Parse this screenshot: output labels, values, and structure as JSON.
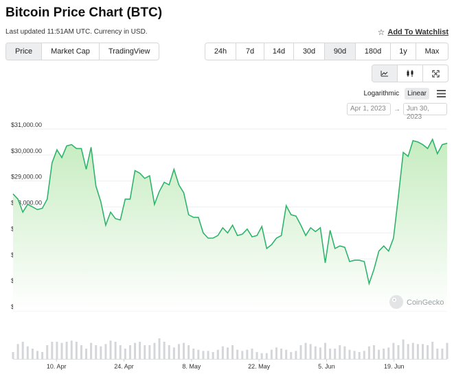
{
  "header": {
    "title": "Bitcoin Price Chart (BTC)",
    "subtitle": "Last updated 11:51AM UTC. Currency in USD.",
    "watchlist_label": "Add To Watchlist"
  },
  "tabs": [
    {
      "label": "Price",
      "active": true
    },
    {
      "label": "Market Cap",
      "active": false
    },
    {
      "label": "TradingView",
      "active": false
    }
  ],
  "ranges": [
    {
      "label": "24h",
      "active": false
    },
    {
      "label": "7d",
      "active": false
    },
    {
      "label": "14d",
      "active": false
    },
    {
      "label": "30d",
      "active": false
    },
    {
      "label": "90d",
      "active": true
    },
    {
      "label": "180d",
      "active": false
    },
    {
      "label": "1y",
      "active": false
    },
    {
      "label": "Max",
      "active": false
    }
  ],
  "chart_types": [
    {
      "icon": "line-chart-icon",
      "active": true
    },
    {
      "icon": "candlestick-icon",
      "active": false
    },
    {
      "icon": "fullscreen-icon",
      "active": false
    }
  ],
  "scale": {
    "log_label": "Logarithmic",
    "linear_label": "Linear",
    "active": "linear"
  },
  "date_range": {
    "from": "Apr 1, 2023",
    "arrow": "→",
    "to": "Jun 30, 2023"
  },
  "watermark": "CoinGecko",
  "colors": {
    "line": "#2fb36d",
    "fill_top": "#c6ecc0",
    "fill_bottom": "#ffffff",
    "volume": "#d4d6da",
    "grid": "#eeeeee"
  },
  "chart_data": {
    "type": "area",
    "title": "Bitcoin Price Chart (BTC)",
    "xlabel": "",
    "ylabel": "",
    "x_start": "2023-04-01",
    "x_end": "2023-06-30",
    "ylim": [
      24000,
      31000
    ],
    "yticks": [
      31000,
      30000,
      29000,
      28000,
      27000,
      26000,
      25000,
      24000
    ],
    "ytick_labels": [
      "$31,000.00",
      "$30,000.00",
      "$29,000.00",
      "$28,000.00",
      "$27,000.00",
      "$26,000.00",
      "$25,000.00",
      "$24,000.00"
    ],
    "xticks": [
      {
        "label": "10. Apr",
        "date": "2023-04-10"
      },
      {
        "label": "24. Apr",
        "date": "2023-04-24"
      },
      {
        "label": "8. May",
        "date": "2023-05-08"
      },
      {
        "label": "22. May",
        "date": "2023-05-22"
      },
      {
        "label": "5. Jun",
        "date": "2023-06-05"
      },
      {
        "label": "19. Jun",
        "date": "2023-06-19"
      }
    ],
    "grid": true,
    "legend": "none",
    "series": [
      {
        "values": [
          28500,
          28300,
          27800,
          28100,
          28000,
          27900,
          27950,
          28300,
          29700,
          30200,
          29900,
          30350,
          30400,
          30250,
          30250,
          29450,
          30300,
          28800,
          28200,
          27300,
          27800,
          27550,
          27500,
          28300,
          28300,
          29400,
          29300,
          29100,
          29200,
          28100,
          28600,
          28950,
          28850,
          29450,
          28850,
          28550,
          27700,
          27600,
          27600,
          27000,
          26800,
          26800,
          26900,
          27200,
          27000,
          27300,
          26900,
          26950,
          27150,
          26850,
          26900,
          27250,
          26400,
          26550,
          26800,
          26900,
          28050,
          27700,
          27650,
          27300,
          26900,
          27200,
          27050,
          27200,
          25850,
          27100,
          26400,
          26500,
          26450,
          25900,
          25950,
          25950,
          25900,
          25050,
          25600,
          26300,
          26500,
          26300,
          26800,
          28400,
          30100,
          29950,
          30550,
          30500,
          30400,
          30250,
          30600,
          30050,
          30400,
          30450
        ]
      }
    ],
    "volume": [
      6,
      13,
      15,
      11,
      9,
      7,
      6,
      12,
      15,
      15,
      14,
      15,
      16,
      15,
      12,
      9,
      14,
      12,
      11,
      13,
      16,
      15,
      12,
      9,
      12,
      14,
      15,
      12,
      12,
      14,
      18,
      15,
      12,
      10,
      13,
      14,
      12,
      9,
      8,
      7,
      7,
      6,
      8,
      11,
      10,
      12,
      8,
      7,
      8,
      9,
      6,
      5,
      5,
      8,
      10,
      9,
      8,
      6,
      7,
      12,
      14,
      13,
      11,
      10,
      14,
      9,
      9,
      12,
      11,
      8,
      7,
      6,
      7,
      11,
      12,
      8,
      9,
      10,
      14,
      12,
      17,
      13,
      14,
      13,
      13,
      12,
      15,
      9,
      9,
      14
    ]
  }
}
